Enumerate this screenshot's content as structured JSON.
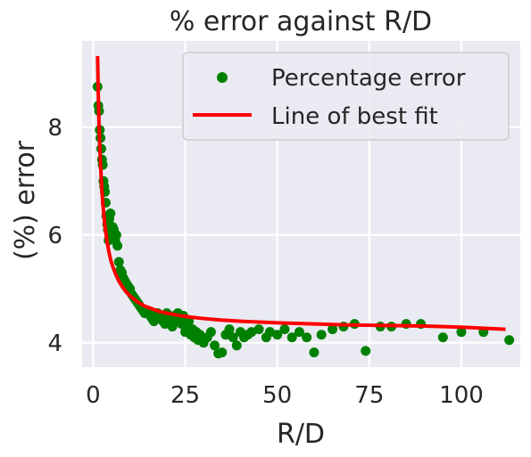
{
  "chart_data": {
    "type": "scatter",
    "title": "% error against R/D",
    "xlabel": "R/D",
    "ylabel": "(%) error",
    "xlim": [
      -3,
      116
    ],
    "ylim": [
      3.55,
      9.6
    ],
    "xticks": [
      0,
      25,
      50,
      75,
      100
    ],
    "yticks": [
      4,
      6,
      8
    ],
    "grid": true,
    "legend_position": "top-right",
    "colors": {
      "background": "#eaeaf2",
      "grid": "#ffffff",
      "scatter": "#008000",
      "fit_line": "#ff0000"
    },
    "series": [
      {
        "name": "Percentage error",
        "kind": "scatter",
        "x": [
          1.2,
          1.4,
          1.6,
          1.8,
          2.0,
          2.2,
          2.4,
          2.6,
          2.8,
          3.0,
          3.2,
          3.4,
          3.6,
          3.8,
          4.0,
          4.2,
          4.4,
          4.7,
          5.0,
          5.3,
          5.6,
          6.0,
          6.3,
          6.6,
          7.0,
          7.4,
          7.8,
          8.2,
          8.6,
          9.0,
          9.5,
          10.0,
          10.5,
          11.0,
          11.5,
          12.0,
          12.5,
          13.0,
          13.5,
          14.0,
          14.5,
          15.0,
          15.5,
          16.0,
          16.5,
          17.0,
          17.5,
          18.0,
          18.5,
          19.0,
          19.5,
          20.0,
          20.5,
          21.0,
          21.5,
          22.0,
          22.5,
          23.0,
          23.5,
          24.0,
          24.5,
          25.0,
          25.5,
          26.0,
          26.5,
          27.0,
          27.5,
          28.0,
          28.5,
          29.0,
          29.5,
          30.0,
          31.0,
          32.0,
          33.0,
          34.0,
          35.0,
          36.0,
          37.0,
          38.0,
          39.0,
          40.0,
          41.0,
          42.0,
          43.0,
          45.0,
          47.0,
          48.0,
          50.0,
          52.0,
          54.0,
          56.0,
          58.0,
          60.0,
          62.0,
          65.0,
          68.0,
          71.0,
          74.0,
          78.0,
          81.0,
          85.0,
          89.0,
          95.0,
          100.0,
          106.0,
          113.0
        ],
        "y": [
          8.75,
          8.4,
          8.3,
          7.95,
          7.8,
          7.6,
          7.4,
          7.3,
          7.0,
          6.9,
          6.8,
          6.6,
          6.35,
          6.2,
          6.1,
          5.9,
          6.3,
          6.4,
          6.05,
          6.15,
          6.1,
          5.9,
          6.0,
          5.8,
          5.5,
          5.35,
          5.3,
          5.2,
          5.15,
          5.1,
          5.05,
          5.0,
          4.9,
          4.85,
          4.8,
          4.75,
          4.7,
          4.65,
          4.6,
          4.55,
          4.6,
          4.55,
          4.5,
          4.45,
          4.4,
          4.5,
          4.55,
          4.45,
          4.5,
          4.4,
          4.35,
          4.55,
          4.4,
          4.45,
          4.3,
          4.5,
          4.4,
          4.55,
          4.45,
          4.35,
          4.5,
          4.2,
          4.3,
          4.4,
          4.15,
          4.25,
          4.1,
          4.2,
          4.05,
          4.15,
          4.1,
          4.0,
          4.1,
          4.2,
          3.95,
          3.8,
          3.82,
          4.15,
          4.25,
          4.1,
          3.95,
          4.2,
          4.1,
          4.15,
          4.2,
          4.25,
          4.1,
          4.2,
          4.15,
          4.25,
          4.1,
          4.2,
          4.1,
          3.82,
          4.15,
          4.25,
          4.3,
          4.35,
          3.85,
          4.3,
          4.3,
          4.35,
          4.35,
          4.1,
          4.2,
          4.2,
          4.05
        ]
      },
      {
        "name": "Line of best fit",
        "kind": "line",
        "x": [
          1.2,
          1.4,
          1.6,
          1.8,
          2.0,
          2.3,
          2.6,
          3.0,
          3.4,
          3.8,
          4.3,
          4.8,
          5.4,
          6.0,
          7.0,
          8.0,
          9.0,
          10.0,
          12.0,
          14.0,
          16.0,
          18.0,
          20.0,
          23.0,
          26.0,
          30.0,
          35.0,
          40.0,
          50.0,
          60.0,
          70.0,
          80.0,
          90.0,
          100.0,
          112.0
        ],
        "y": [
          9.32,
          8.6,
          8.06,
          7.64,
          7.31,
          6.91,
          6.61,
          6.3,
          6.06,
          5.87,
          5.68,
          5.53,
          5.4,
          5.29,
          5.14,
          5.03,
          4.94,
          4.87,
          4.76,
          4.68,
          4.63,
          4.58,
          4.55,
          4.51,
          4.48,
          4.45,
          4.42,
          4.4,
          4.37,
          4.35,
          4.33,
          4.32,
          4.31,
          4.29,
          4.25
        ]
      }
    ]
  }
}
